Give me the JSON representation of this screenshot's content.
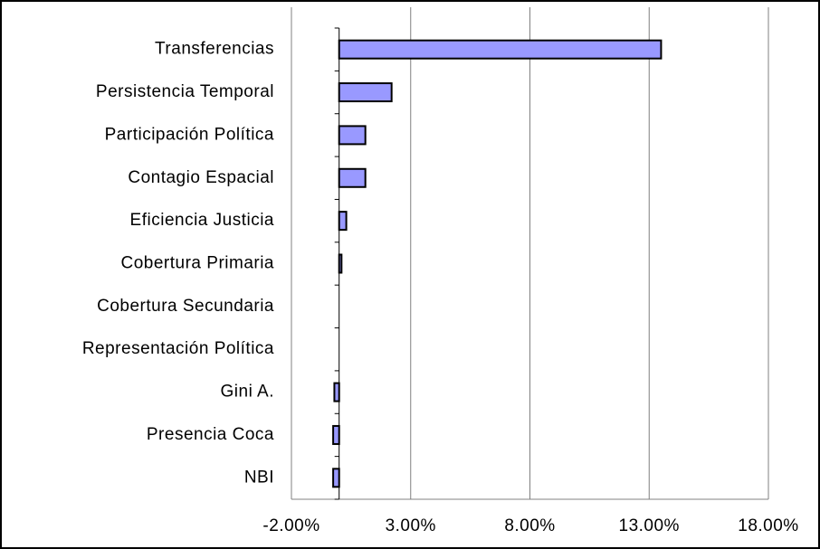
{
  "chart_data": {
    "type": "hbar",
    "categories": [
      "Transferencias",
      "Persistencia Temporal",
      "Participación Política",
      "Contagio Espacial ",
      "Eficiencia Justicia",
      "Cobertura Primaria",
      "Cobertura Secundaria",
      "Representación Política",
      "Gini A.",
      "Presencia Coca",
      "NBI"
    ],
    "values": [
      13.5,
      2.2,
      1.1,
      1.1,
      0.3,
      0.1,
      0,
      0,
      -0.2,
      -0.25,
      -0.25
    ],
    "color": "#9999ff",
    "xlim": [
      -2,
      18
    ],
    "xticks": [
      {
        "value": -2,
        "label": "-2.00%"
      },
      {
        "value": 3,
        "label": "3.00%"
      },
      {
        "value": 8,
        "label": "8.00%"
      },
      {
        "value": 13,
        "label": "13.00%"
      },
      {
        "value": 18,
        "label": "18.00%"
      }
    ],
    "grid": true
  }
}
